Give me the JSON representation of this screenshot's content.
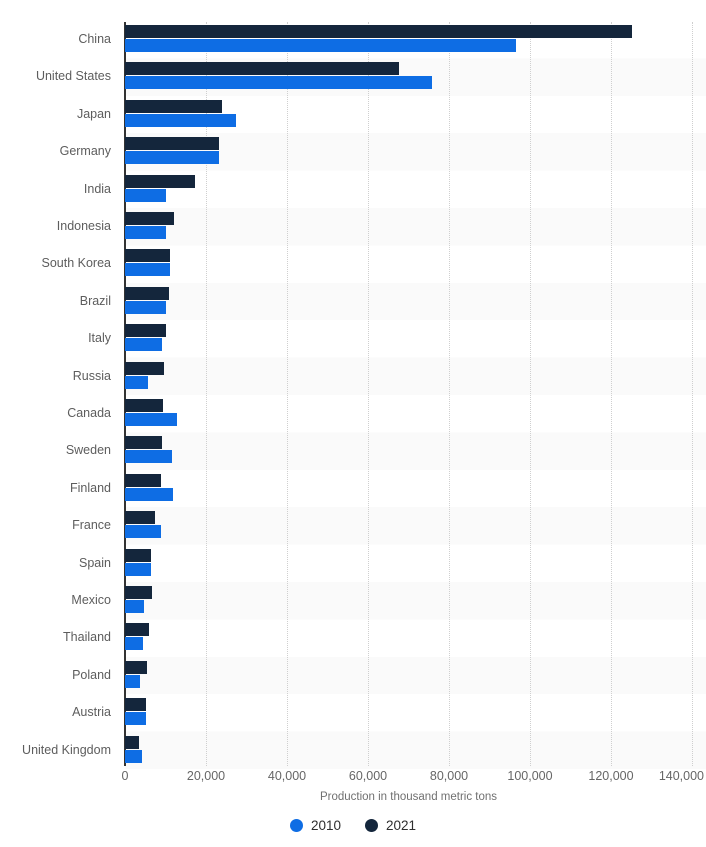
{
  "chart_data": {
    "type": "bar",
    "orientation": "horizontal",
    "title": "",
    "xlabel": "Production in thousand metric tons",
    "xlim": [
      0,
      140000
    ],
    "x_tick_labels": [
      "0",
      "20,000",
      "40,000",
      "60,000",
      "80,000",
      "100,000",
      "120,000",
      "140,000"
    ],
    "grid": "vertical dotted gridlines every 20,000",
    "row_striping": "alternate country rows lightly shaded",
    "group_order_top_to_bottom": [
      "2021",
      "2010"
    ],
    "categories": [
      "China",
      "United States",
      "Japan",
      "Germany",
      "India",
      "Indonesia",
      "South Korea",
      "Brazil",
      "Italy",
      "Russia",
      "Canada",
      "Sweden",
      "Finland",
      "France",
      "Spain",
      "Mexico",
      "Thailand",
      "Poland",
      "Austria",
      "United Kingdom"
    ],
    "series": [
      {
        "name": "2010",
        "color": "#0e6de4",
        "values": [
          96500,
          75900,
          27400,
          23100,
          10200,
          10100,
          11100,
          10100,
          9100,
          5700,
          12800,
          11500,
          11900,
          8900,
          6300,
          4700,
          4400,
          3700,
          5100,
          4300
        ]
      },
      {
        "name": "2021",
        "color": "#14263c",
        "values": [
          125300,
          67700,
          23900,
          23200,
          17200,
          12100,
          11200,
          10900,
          10000,
          9700,
          9400,
          9100,
          9000,
          7400,
          6500,
          6600,
          6000,
          5400,
          5200,
          3500
        ]
      }
    ],
    "legend": {
      "position": "bottom-center",
      "items": [
        {
          "label": "2010",
          "color": "#0e6de4"
        },
        {
          "label": "2021",
          "color": "#14263c"
        }
      ]
    }
  },
  "colors": {
    "background": "#ffffff",
    "bar_2010": "#0e6de4",
    "bar_2021": "#14263c",
    "row_stripe": "#fafafa",
    "gridline": "#cfcfcf",
    "axis_line": "#333333",
    "category_label": "#5d5d5d",
    "tick_label": "#666666",
    "axis_title": "#707070",
    "legend_text": "#2e2e2e"
  }
}
